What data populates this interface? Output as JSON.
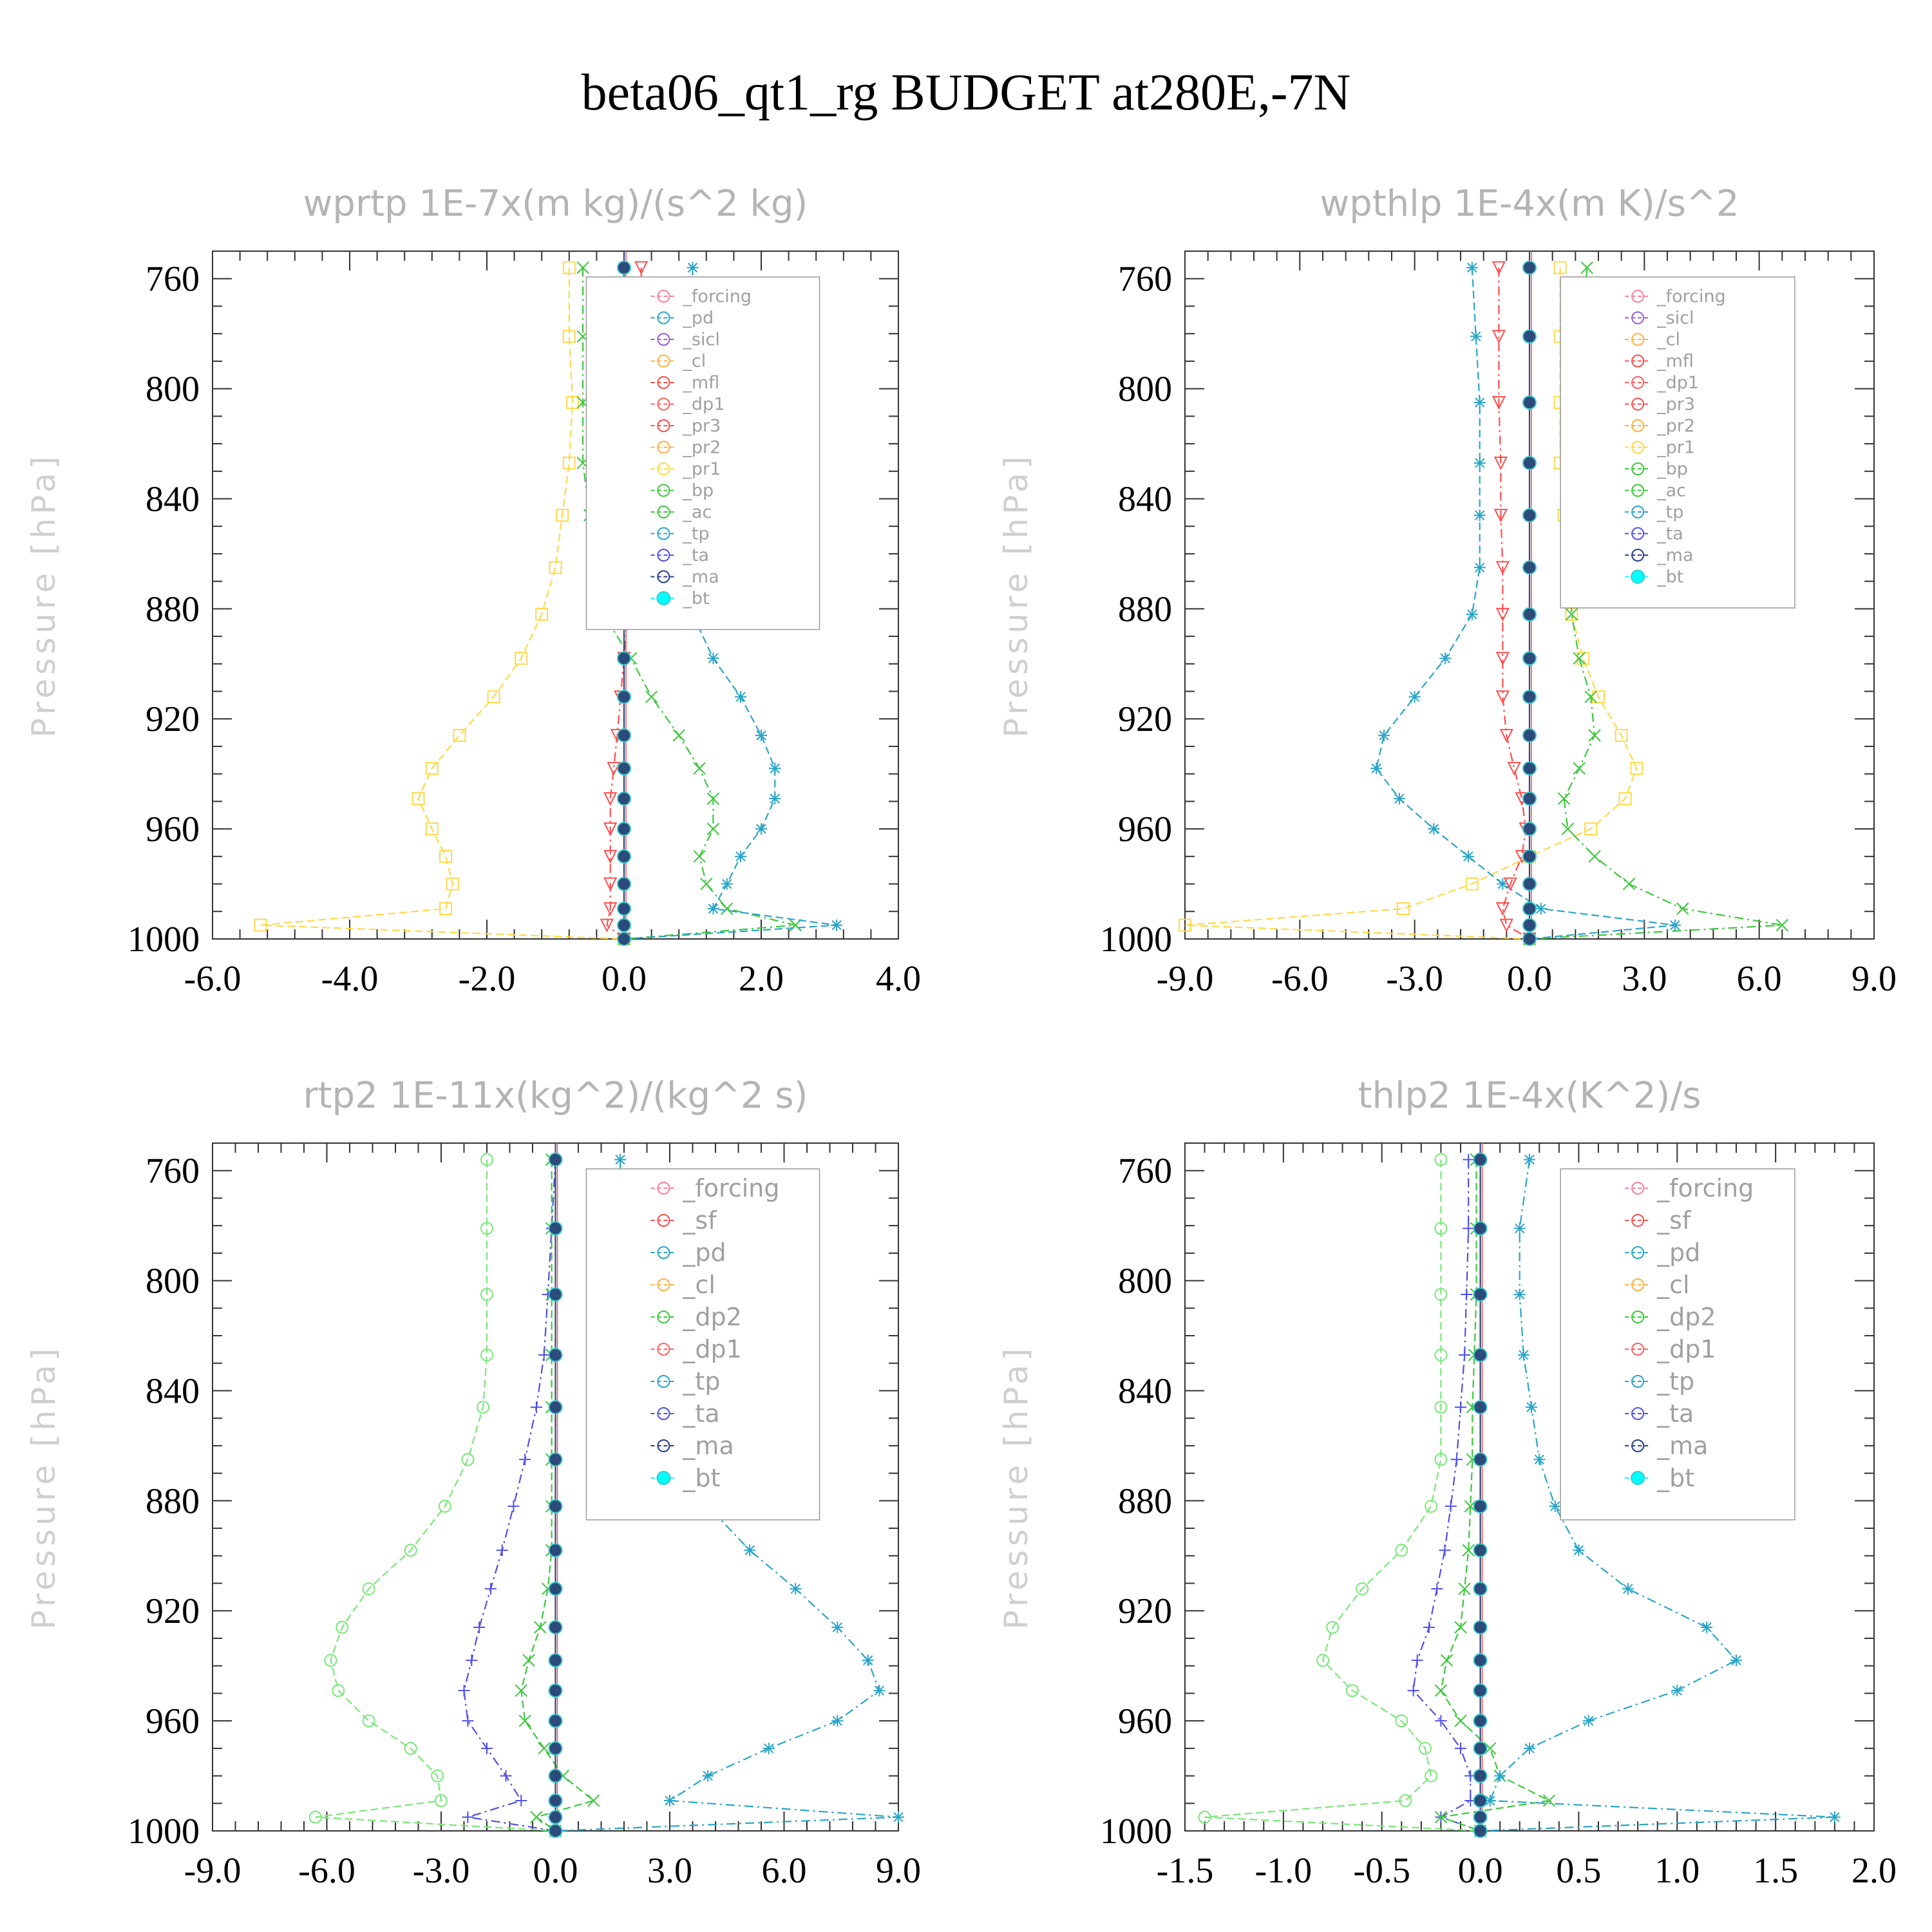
{
  "title": "beta06_qt1_rg  BUDGET at280E,-7N",
  "colors": {
    "yellow": "#ffd84a",
    "green": "#3cc83c",
    "ltgreen": "#78e878",
    "teal": "#2aa5c8",
    "red": "#ff4d4d",
    "navy": "#283c8c",
    "blue": "#5050e6",
    "cyan": "#00ffff",
    "pink": "#ff7f9c",
    "purple": "#9a60d8",
    "orange": "#ffb040",
    "gray": "#808080"
  },
  "chart_data": [
    {
      "type": "line",
      "title": "wprtp  1E-7x(m kg)/(s^2 kg)",
      "ylabel": "Pressure [hPa]",
      "xlim": [
        -6.0,
        4.0
      ],
      "ylim": [
        1000,
        750
      ],
      "xticks": [
        "-6.0",
        "-4.0",
        "-2.0",
        "0.0",
        "2.0",
        "4.0"
      ],
      "yticks": [
        "760",
        "800",
        "840",
        "880",
        "920",
        "960",
        "1000"
      ],
      "legend": [
        "_forcing",
        "_pd",
        "_sicl",
        "_cl",
        "_mfl",
        "_dp1",
        "_pr3",
        "_pr2",
        "_pr1",
        "_bp",
        "_ac",
        "_tp",
        "_ta",
        "_ma",
        "_bt"
      ],
      "pressure": [
        756,
        781,
        805,
        827,
        846,
        865,
        882,
        898,
        912,
        926,
        938,
        949,
        960,
        970,
        980,
        989,
        995,
        1000
      ],
      "series": [
        {
          "name": "_pr1",
          "color": "#ffd84a",
          "marker": "square",
          "values": [
            -0.8,
            -0.8,
            -0.75,
            -0.8,
            -0.9,
            -1.0,
            -1.2,
            -1.5,
            -1.9,
            -2.4,
            -2.8,
            -3.0,
            -2.8,
            -2.6,
            -2.5,
            -2.6,
            -5.3,
            0.0
          ]
        },
        {
          "name": "_bp",
          "color": "#3cc83c",
          "marker": "x",
          "values": [
            -0.6,
            -0.6,
            -0.6,
            -0.6,
            -0.5,
            -0.4,
            -0.3,
            0.1,
            0.4,
            0.8,
            1.1,
            1.3,
            1.3,
            1.1,
            1.2,
            1.5,
            2.5,
            0.0
          ]
        },
        {
          "name": "_tp",
          "color": "#2aa5c8",
          "marker": "star",
          "values": [
            1.0,
            1.0,
            1.0,
            1.0,
            1.0,
            1.0,
            1.0,
            1.3,
            1.7,
            2.0,
            2.2,
            2.2,
            2.0,
            1.7,
            1.5,
            1.3,
            3.1,
            0.0
          ]
        },
        {
          "name": "_pr3",
          "color": "#ff4d4d",
          "marker": "tri-down",
          "values": [
            0.25,
            0.25,
            0.25,
            0.2,
            0.15,
            0.1,
            0.05,
            0.0,
            -0.05,
            -0.1,
            -0.15,
            -0.2,
            -0.2,
            -0.2,
            -0.2,
            -0.2,
            -0.25,
            0.0
          ]
        },
        {
          "name": "_bt",
          "color": "#2c4a7a",
          "marker": "dot",
          "values": [
            0.0,
            0.0,
            0.0,
            0.0,
            0.0,
            0.0,
            0.0,
            0.0,
            0.0,
            0.0,
            0.0,
            0.0,
            0.0,
            0.0,
            0.0,
            0.0,
            0.0,
            0.0
          ]
        }
      ]
    },
    {
      "type": "line",
      "title": "wpthlp  1E-4x(m K)/s^2",
      "ylabel": "Pressure [hPa]",
      "xlim": [
        -9.0,
        9.0
      ],
      "ylim": [
        1000,
        750
      ],
      "xticks": [
        "-9.0",
        "-6.0",
        "-3.0",
        "0.0",
        "3.0",
        "6.0",
        "9.0"
      ],
      "yticks": [
        "760",
        "800",
        "840",
        "880",
        "920",
        "960",
        "1000"
      ],
      "legend": [
        "_forcing",
        "_sicl",
        "_cl",
        "_mfl",
        "_dp1",
        "_pr3",
        "_pr2",
        "_pr1",
        "_bp",
        "_ac",
        "_tp",
        "_ta",
        "_ma",
        "_bt"
      ],
      "pressure": [
        756,
        781,
        805,
        827,
        846,
        865,
        882,
        898,
        912,
        926,
        938,
        949,
        960,
        970,
        980,
        989,
        995,
        1000
      ],
      "series": [
        {
          "name": "_pr1",
          "color": "#ffd84a",
          "marker": "square",
          "values": [
            0.8,
            0.8,
            0.8,
            0.8,
            0.9,
            1.0,
            1.1,
            1.4,
            1.8,
            2.4,
            2.8,
            2.5,
            1.6,
            0.0,
            -1.5,
            -3.3,
            -9.0,
            0.0
          ]
        },
        {
          "name": "_bp",
          "color": "#3cc83c",
          "marker": "x",
          "values": [
            1.5,
            1.4,
            1.3,
            1.3,
            1.2,
            1.1,
            1.1,
            1.3,
            1.6,
            1.7,
            1.3,
            0.9,
            1.0,
            1.7,
            2.6,
            4.0,
            6.6,
            0.0
          ]
        },
        {
          "name": "_tp",
          "color": "#2aa5c8",
          "marker": "star",
          "values": [
            -1.5,
            -1.4,
            -1.3,
            -1.3,
            -1.3,
            -1.3,
            -1.5,
            -2.2,
            -3.0,
            -3.8,
            -4.0,
            -3.4,
            -2.5,
            -1.6,
            -0.7,
            0.3,
            3.8,
            0.0
          ]
        },
        {
          "name": "_pr3",
          "color": "#ff4d4d",
          "marker": "tri-down",
          "values": [
            -0.8,
            -0.8,
            -0.8,
            -0.75,
            -0.75,
            -0.7,
            -0.7,
            -0.7,
            -0.7,
            -0.6,
            -0.4,
            -0.2,
            -0.1,
            -0.2,
            -0.5,
            -0.7,
            -0.6,
            0.0
          ]
        },
        {
          "name": "_bt",
          "color": "#2c4a7a",
          "marker": "dot",
          "values": [
            0.0,
            0.0,
            0.0,
            0.0,
            0.0,
            0.0,
            0.0,
            0.0,
            0.0,
            0.0,
            0.0,
            0.0,
            0.0,
            0.0,
            0.0,
            0.0,
            0.0,
            0.0
          ]
        }
      ]
    },
    {
      "type": "line",
      "title": "rtp2  1E-11x(kg^2)/(kg^2 s)",
      "ylabel": "Pressure [hPa]",
      "xlim": [
        -9.0,
        9.0
      ],
      "ylim": [
        1000,
        750
      ],
      "xticks": [
        "-9.0",
        "-6.0",
        "-3.0",
        "0.0",
        "3.0",
        "6.0",
        "9.0"
      ],
      "yticks": [
        "760",
        "800",
        "840",
        "880",
        "920",
        "960",
        "1000"
      ],
      "legend": [
        "_forcing",
        "_sf",
        "_pd",
        "_cl",
        "_dp2",
        "_dp1",
        "_tp",
        "_ta",
        "_ma",
        "_bt"
      ],
      "pressure": [
        756,
        781,
        805,
        827,
        846,
        865,
        882,
        898,
        912,
        926,
        938,
        949,
        960,
        970,
        980,
        989,
        995,
        1000
      ],
      "series": [
        {
          "name": "_dp1",
          "color": "#78e878",
          "marker": "circle",
          "values": [
            -1.8,
            -1.8,
            -1.8,
            -1.8,
            -1.9,
            -2.3,
            -2.9,
            -3.8,
            -4.9,
            -5.6,
            -5.9,
            -5.7,
            -4.9,
            -3.8,
            -3.1,
            -3.0,
            -6.3,
            0.0
          ]
        },
        {
          "name": "_ta",
          "color": "#5050e6",
          "marker": "plus",
          "values": [
            0.0,
            -0.1,
            -0.2,
            -0.3,
            -0.5,
            -0.8,
            -1.1,
            -1.4,
            -1.7,
            -2.0,
            -2.2,
            -2.4,
            -2.3,
            -1.8,
            -1.3,
            -0.9,
            -2.3,
            0.0
          ]
        },
        {
          "name": "_dp2",
          "color": "#3cc83c",
          "marker": "x",
          "values": [
            -0.1,
            -0.1,
            -0.1,
            -0.1,
            -0.1,
            -0.1,
            -0.1,
            -0.1,
            -0.2,
            -0.4,
            -0.7,
            -0.9,
            -0.8,
            -0.3,
            0.2,
            1.0,
            -0.5,
            0.0
          ]
        },
        {
          "name": "_tp",
          "color": "#2aa5c8",
          "marker": "star",
          "values": [
            1.7,
            1.7,
            1.7,
            2.0,
            2.6,
            3.2,
            4.0,
            5.1,
            6.3,
            7.4,
            8.2,
            8.5,
            7.4,
            5.6,
            4.0,
            3.0,
            9.0,
            0.0
          ]
        },
        {
          "name": "_bt",
          "color": "#2c4a7a",
          "marker": "dot",
          "values": [
            0.0,
            0.0,
            0.0,
            0.0,
            0.0,
            0.0,
            0.0,
            0.0,
            0.0,
            0.0,
            0.0,
            0.0,
            0.0,
            0.0,
            0.0,
            0.0,
            0.0,
            0.0
          ]
        }
      ]
    },
    {
      "type": "line",
      "title": "thlp2  1E-4x(K^2)/s",
      "ylabel": "Pressure [hPa]",
      "xlim": [
        -1.5,
        2.0
      ],
      "ylim": [
        1000,
        750
      ],
      "xticks": [
        "-1.5",
        "-1.0",
        "-0.5",
        "0.0",
        "0.5",
        "1.0",
        "1.5",
        "2.0"
      ],
      "yticks": [
        "760",
        "800",
        "840",
        "880",
        "920",
        "960",
        "1000"
      ],
      "legend": [
        "_forcing",
        "_sf",
        "_pd",
        "_cl",
        "_dp2",
        "_dp1",
        "_tp",
        "_ta",
        "_ma",
        "_bt"
      ],
      "pressure": [
        756,
        781,
        805,
        827,
        846,
        865,
        882,
        898,
        912,
        926,
        938,
        949,
        960,
        970,
        980,
        989,
        995,
        1000
      ],
      "series": [
        {
          "name": "_dp1",
          "color": "#78e878",
          "marker": "circle",
          "values": [
            -0.2,
            -0.2,
            -0.2,
            -0.2,
            -0.2,
            -0.2,
            -0.25,
            -0.4,
            -0.6,
            -0.75,
            -0.8,
            -0.65,
            -0.4,
            -0.28,
            -0.25,
            -0.38,
            -1.4,
            0.0
          ]
        },
        {
          "name": "_ta",
          "color": "#5050e6",
          "marker": "plus",
          "values": [
            -0.06,
            -0.06,
            -0.07,
            -0.08,
            -0.1,
            -0.12,
            -0.15,
            -0.18,
            -0.22,
            -0.26,
            -0.32,
            -0.34,
            -0.2,
            -0.1,
            -0.05,
            -0.05,
            -0.2,
            0.0
          ]
        },
        {
          "name": "_dp2",
          "color": "#3cc83c",
          "marker": "x",
          "values": [
            -0.02,
            -0.02,
            -0.02,
            -0.03,
            -0.04,
            -0.04,
            -0.05,
            -0.06,
            -0.08,
            -0.1,
            -0.17,
            -0.2,
            -0.1,
            0.05,
            0.1,
            0.35,
            -0.2,
            0.0
          ]
        },
        {
          "name": "_tp",
          "color": "#2aa5c8",
          "marker": "star",
          "values": [
            0.25,
            0.2,
            0.2,
            0.22,
            0.26,
            0.3,
            0.38,
            0.5,
            0.75,
            1.15,
            1.3,
            1.0,
            0.55,
            0.25,
            0.1,
            0.05,
            1.8,
            0.0
          ]
        },
        {
          "name": "_bt",
          "color": "#2c4a7a",
          "marker": "dot",
          "values": [
            0.0,
            0.0,
            0.0,
            0.0,
            0.0,
            0.0,
            0.0,
            0.0,
            0.0,
            0.0,
            0.0,
            0.0,
            0.0,
            0.0,
            0.0,
            0.0,
            0.0,
            0.0
          ]
        }
      ]
    }
  ]
}
